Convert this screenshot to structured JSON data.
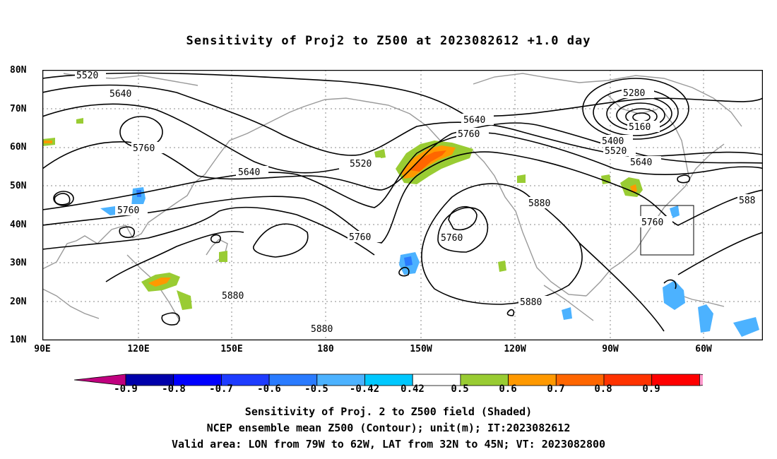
{
  "title": "Sensitivity of Proj2 to Z500 at 2023082612 +1.0 day",
  "lat_labels": [
    "80N",
    "70N",
    "60N",
    "50N",
    "40N",
    "30N",
    "20N",
    "10N"
  ],
  "lon_labels": [
    "90E",
    "120E",
    "150E",
    "180",
    "150W",
    "120W",
    "90W",
    "60W"
  ],
  "contour_labels": [
    "5520",
    "5640",
    "5760",
    "5640",
    "5760",
    "5520",
    "5640",
    "5760",
    "5280",
    "5160",
    "5400",
    "5520",
    "5640",
    "5760",
    "5880",
    "5760",
    "5880",
    "5880",
    "5880",
    "5760",
    "588"
  ],
  "colorbar": {
    "labels": [
      "-0.9",
      "-0.8",
      "-0.7",
      "-0.6",
      "-0.5",
      "-0.42",
      "0.42",
      "0.5",
      "0.6",
      "0.7",
      "0.8",
      "0.9"
    ],
    "colors": [
      "#c0007f",
      "#0000aa",
      "#0000ff",
      "#1e3cff",
      "#2a7bff",
      "#4cb2ff",
      "#00c8ff",
      "#ffffff",
      "#99cc33",
      "#ff9900",
      "#ff6600",
      "#ff3300",
      "#ff0000",
      "#ff99cc"
    ]
  },
  "captions": {
    "line1": "Sensitivity of Proj. 2 to Z500 field (Shaded)",
    "line2": "NCEP ensemble mean Z500 (Contour); unit(m); IT:2023082612",
    "line3": "Valid area: LON from 79W to 62W, LAT from 32N to 45N; VT: 2023082800"
  }
}
